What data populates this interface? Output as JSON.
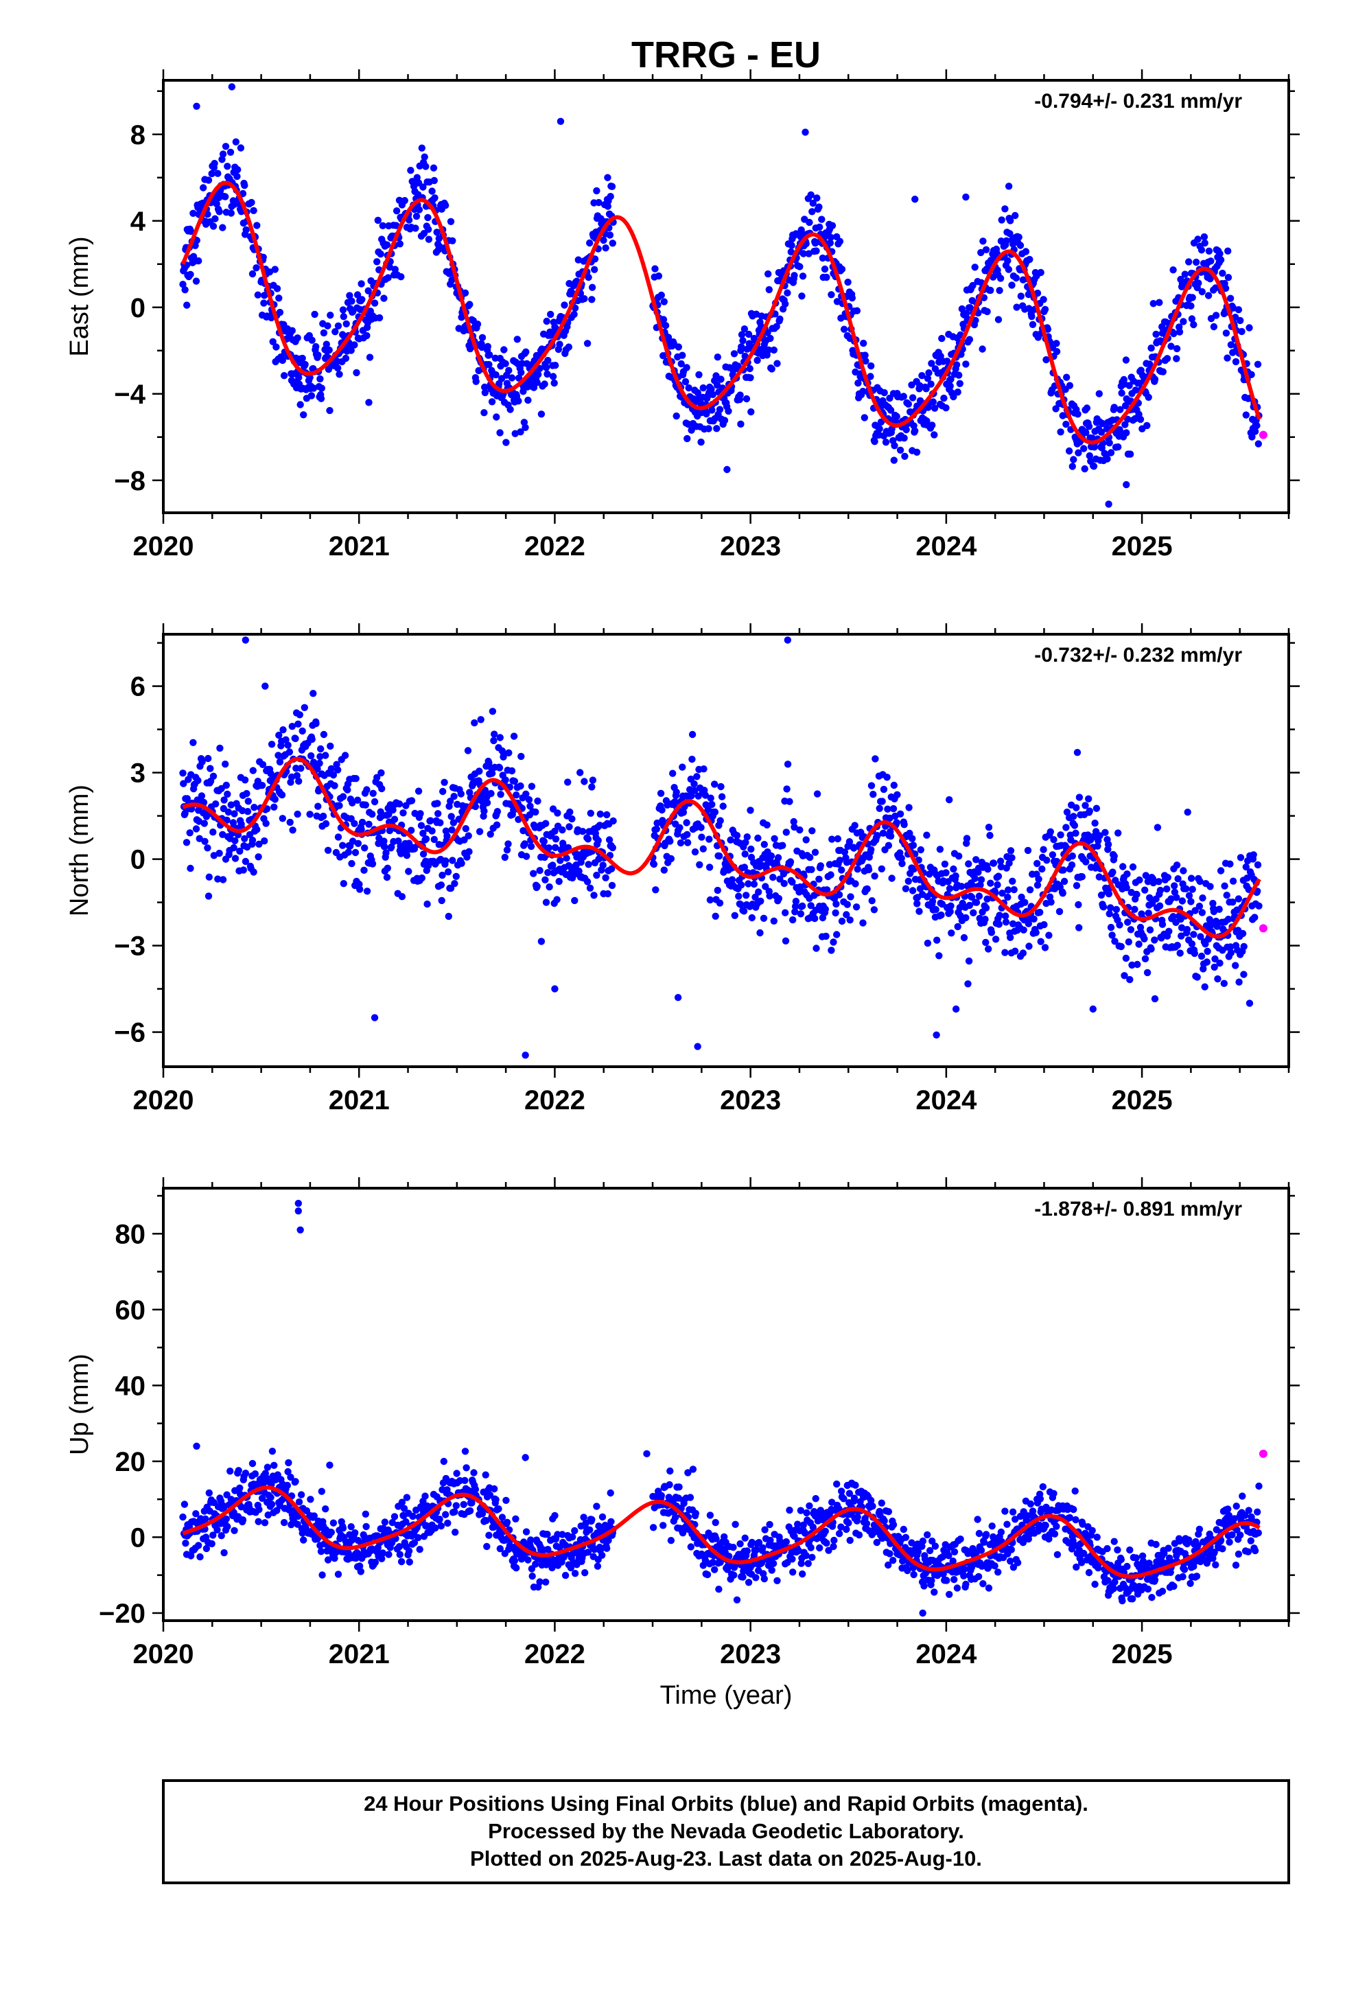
{
  "figure": {
    "title": "TRRG - EU",
    "xlabel": "Time (year)",
    "footer": [
      "24 Hour Positions Using Final Orbits (blue) and Rapid Orbits (magenta).",
      "Processed by the Nevada Geodetic Laboratory.",
      "Plotted on 2025-Aug-23. Last data on 2025-Aug-10."
    ]
  },
  "colors": {
    "final_orbits": "#0000ff",
    "rapid_orbits": "#ff00ff",
    "model_fit": "#ff0000",
    "frame": "#000000"
  },
  "chart_data": [
    {
      "type": "scatter",
      "ylabel": "East (mm)",
      "rate_label": "-0.794+/- 0.231 mm/yr",
      "xlim": [
        2020.0,
        2025.75
      ],
      "ylim": [
        -9.5,
        10.5
      ],
      "xticks": [
        2020,
        2021,
        2022,
        2023,
        2024,
        2025
      ],
      "yticks": [
        -8,
        -4,
        0,
        4,
        8
      ],
      "gaps": [
        [
          2022.3,
          2022.5
        ]
      ],
      "model": {
        "t0": 2020.1,
        "t1": 2025.6,
        "value_at_t0": 2.0,
        "rate": -0.794,
        "annual_amplitude": 4.1,
        "annual_phase_deg": 20,
        "semiannual_amplitude": 0.7,
        "semiannual_phase_deg": 260
      },
      "scatter_sd": 0.9,
      "outliers": [
        {
          "t": 2020.35,
          "y": 10.2
        },
        {
          "t": 2020.17,
          "y": 9.3
        },
        {
          "t": 2022.03,
          "y": 8.6
        },
        {
          "t": 2023.28,
          "y": 8.1
        },
        {
          "t": 2024.32,
          "y": 5.6
        },
        {
          "t": 2023.84,
          "y": 5.0
        },
        {
          "t": 2024.1,
          "y": 5.1
        },
        {
          "t": 2021.05,
          "y": -4.4
        },
        {
          "t": 2021.72,
          "y": -5.8
        },
        {
          "t": 2022.88,
          "y": -7.5
        },
        {
          "t": 2023.85,
          "y": -6.7
        },
        {
          "t": 2024.83,
          "y": -9.1
        },
        {
          "t": 2024.92,
          "y": -8.2
        },
        {
          "t": 2024.92,
          "y": -5.8
        },
        {
          "t": 2022.95,
          "y": -5.4
        },
        {
          "t": 2022.27,
          "y": 6.0
        },
        {
          "t": 2020.12,
          "y": 0.1
        },
        {
          "t": 2020.7,
          "y": -4.5
        }
      ],
      "rapid_points": [
        {
          "t": 2025.62,
          "y": -5.9
        }
      ]
    },
    {
      "type": "scatter",
      "ylabel": "North (mm)",
      "rate_label": "-0.732+/- 0.232 mm/yr",
      "xlim": [
        2020.0,
        2025.75
      ],
      "ylim": [
        -7.2,
        7.8
      ],
      "xticks": [
        2020,
        2021,
        2022,
        2023,
        2024,
        2025
      ],
      "yticks": [
        -6,
        -3,
        0,
        3,
        6
      ],
      "gaps": [
        [
          2022.3,
          2022.5
        ]
      ],
      "model": {
        "t0": 2020.1,
        "t1": 2025.6,
        "value_at_t0": 1.8,
        "rate": -0.732,
        "annual_amplitude": 1.0,
        "annual_phase_deg": 230,
        "semiannual_amplitude": 0.7,
        "semiannual_phase_deg": 30
      },
      "scatter_sd": 0.95,
      "outliers": [
        {
          "t": 2020.42,
          "y": 7.6
        },
        {
          "t": 2023.19,
          "y": 7.6
        },
        {
          "t": 2020.52,
          "y": 6.0
        },
        {
          "t": 2024.67,
          "y": 3.7
        },
        {
          "t": 2020.78,
          "y": 4.7
        },
        {
          "t": 2021.08,
          "y": -5.5
        },
        {
          "t": 2021.85,
          "y": -6.8
        },
        {
          "t": 2022.73,
          "y": -6.5
        },
        {
          "t": 2023.95,
          "y": -6.1
        },
        {
          "t": 2024.05,
          "y": -5.2
        },
        {
          "t": 2024.75,
          "y": -5.2
        },
        {
          "t": 2022.0,
          "y": -4.5
        },
        {
          "t": 2025.55,
          "y": -5.0
        },
        {
          "t": 2025.52,
          "y": -4.0
        },
        {
          "t": 2022.63,
          "y": -4.8
        }
      ],
      "rapid_points": [
        {
          "t": 2025.62,
          "y": -2.4
        }
      ]
    },
    {
      "type": "scatter",
      "ylabel": "Up (mm)",
      "rate_label": "-1.878+/- 0.891 mm/yr",
      "xlim": [
        2020.0,
        2025.75
      ],
      "ylim": [
        -22,
        92
      ],
      "xticks": [
        2020,
        2021,
        2022,
        2023,
        2024,
        2025
      ],
      "yticks": [
        -20,
        0,
        20,
        40,
        60,
        80
      ],
      "gaps": [
        [
          2022.3,
          2022.5
        ]
      ],
      "model": {
        "t0": 2020.1,
        "t1": 2025.6,
        "value_at_t0": 1.0,
        "rate": -1.878,
        "annual_amplitude": 7.2,
        "annual_phase_deg": 305,
        "semiannual_amplitude": 1.5,
        "semiannual_phase_deg": 110
      },
      "scatter_sd": 3.6,
      "outliers": [
        {
          "t": 2020.69,
          "y": 88
        },
        {
          "t": 2020.69,
          "y": 86
        },
        {
          "t": 2020.7,
          "y": 81
        },
        {
          "t": 2020.17,
          "y": 24
        },
        {
          "t": 2022.47,
          "y": 22
        },
        {
          "t": 2021.85,
          "y": 21
        },
        {
          "t": 2023.88,
          "y": -20
        },
        {
          "t": 2020.85,
          "y": 19
        },
        {
          "t": 2022.68,
          "y": 17
        }
      ],
      "rapid_points": [
        {
          "t": 2025.62,
          "y": 22
        }
      ]
    }
  ]
}
